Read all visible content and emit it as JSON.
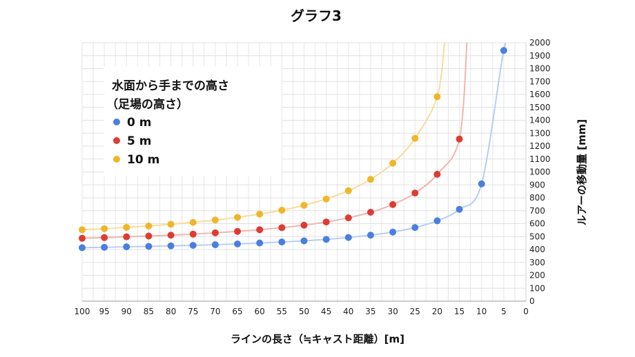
{
  "chart_data": {
    "type": "scatter",
    "title": "グラフ3",
    "xlabel": "ラインの長さ（≒キャスト距離）[m]",
    "ylabel": "ルアーの移動量 [mm]",
    "x": [
      100,
      95,
      90,
      85,
      80,
      75,
      70,
      65,
      60,
      55,
      50,
      45,
      40,
      35,
      30,
      25,
      20,
      15,
      10,
      5
    ],
    "xlim": [
      100,
      0
    ],
    "ylim": [
      0,
      2000
    ],
    "x_reversed": true,
    "x_ticks": [
      100,
      95,
      90,
      85,
      80,
      75,
      70,
      65,
      60,
      55,
      50,
      45,
      40,
      35,
      30,
      25,
      20,
      15,
      10,
      5,
      0
    ],
    "y_ticks": [
      0,
      100,
      200,
      300,
      400,
      500,
      600,
      700,
      800,
      900,
      1000,
      1100,
      1200,
      1300,
      1400,
      1500,
      1600,
      1700,
      1800,
      1900,
      2000
    ],
    "y_axis_position": "right",
    "grid": true,
    "legend": {
      "title_lines": [
        "水面から手までの高さ",
        "（足場の高さ）"
      ],
      "position": "top-left"
    },
    "series": [
      {
        "name": "0 m",
        "color": "#4a7fe0",
        "line_color": "#b6cdf3",
        "values": [
          414,
          417,
          421,
          424,
          428,
          432,
          437,
          443,
          450,
          458,
          467,
          478,
          493,
          511,
          535,
          570,
          622,
          711,
          908,
          1940
        ]
      },
      {
        "name": "5 m",
        "color": "#df3b32",
        "line_color": "#f2b4ae",
        "values": [
          487,
          492,
          498,
          504,
          511,
          519,
          529,
          540,
          553,
          569,
          588,
          613,
          645,
          688,
          748,
          837,
          982,
          1255,
          null,
          null
        ]
      },
      {
        "name": "10 m",
        "color": "#f0b62a",
        "line_color": "#f8dc98",
        "values": [
          553,
          561,
          571,
          582,
          595,
          610,
          628,
          649,
          674,
          704,
          742,
          791,
          855,
          943,
          1068,
          1260,
          1582,
          null,
          null,
          null
        ]
      }
    ]
  }
}
